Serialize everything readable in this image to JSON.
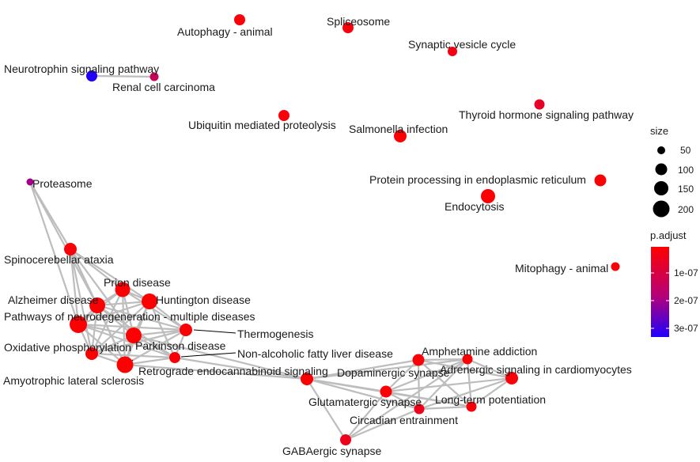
{
  "colors": {
    "low_p": "#ff0000",
    "mid_p": "#8a00d4",
    "high_p": "#1e00ff",
    "edge": "#bdbdbd",
    "leader": "#000000"
  },
  "legend_size": {
    "title": "size",
    "items": [
      "50",
      "100",
      "150",
      "200"
    ]
  },
  "legend_color": {
    "title": "p.adjust",
    "ticks": [
      "1e-07",
      "2e-07",
      "3e-07"
    ]
  },
  "nodes": [
    {
      "id": "autophagy",
      "label": "Autophagy - animal",
      "p": 0.03
    },
    {
      "id": "spliceosome",
      "label": "Spliceosome",
      "p": 0.05
    },
    {
      "id": "synvesicle",
      "label": "Synaptic vesicle cycle",
      "p": 0.08
    },
    {
      "id": "neurotrophin",
      "label": "Neurotrophin signaling pathway",
      "p": 0.99
    },
    {
      "id": "renal",
      "label": "Renal cell carcinoma",
      "p": 0.4
    },
    {
      "id": "thyroid",
      "label": "Thyroid hormone signaling pathway",
      "p": 0.18
    },
    {
      "id": "ubiquitin",
      "label": "Ubiquitin mediated proteolysis",
      "p": 0.04
    },
    {
      "id": "salmonella",
      "label": "Salmonella infection",
      "p": 0.02
    },
    {
      "id": "proteasome",
      "label": "Proteasome",
      "p": 0.6
    },
    {
      "id": "protproc",
      "label": "Protein processing in endoplasmic reticulum",
      "p": 0.02
    },
    {
      "id": "endocytosis",
      "label": "Endocytosis",
      "p": 0.01
    },
    {
      "id": "mitophagy",
      "label": "Mitophagy - animal",
      "p": 0.03
    },
    {
      "id": "sca",
      "label": "Spinocerebellar ataxia",
      "p": 0.03
    },
    {
      "id": "prion",
      "label": "Prion disease",
      "p": 0.01
    },
    {
      "id": "alzheimer",
      "label": "Alzheimer disease",
      "p": 0.01
    },
    {
      "id": "huntington",
      "label": "Huntington disease",
      "p": 0.01
    },
    {
      "id": "pathways",
      "label": "Pathways of neurodegeneration - multiple diseases",
      "p": 0.01
    },
    {
      "id": "thermogenesis",
      "label": "Thermogenesis",
      "p": 0.02
    },
    {
      "id": "parkinson",
      "label": "Parkinson disease",
      "p": 0.01
    },
    {
      "id": "oxphos",
      "label": "Oxidative phosphorylation",
      "p": 0.02
    },
    {
      "id": "nafld",
      "label": "Non-alcoholic fatty liver disease",
      "p": 0.03
    },
    {
      "id": "als",
      "label": "Amyotrophic lateral sclerosis",
      "p": 0.01
    },
    {
      "id": "retrograde",
      "label": "Retrograde endocannabinoid signaling",
      "p": 0.02
    },
    {
      "id": "amphetamine",
      "label": "Amphetamine addiction",
      "p": 0.03
    },
    {
      "id": "dopaminergic",
      "label": "Dopaminergic synapse",
      "p": 0.02
    },
    {
      "id": "adrenergic",
      "label": "Adrenergic signaling in cardiomyocytes",
      "p": 0.03
    },
    {
      "id": "glutamatergic",
      "label": "Glutamatergic synapse",
      "p": 0.02
    },
    {
      "id": "ltp",
      "label": "Long-term potentiation",
      "p": 0.05
    },
    {
      "id": "circadian",
      "label": "Circadian entrainment",
      "p": 0.12
    },
    {
      "id": "gabaergic",
      "label": "GABAergic synapse",
      "p": 0.12
    }
  ],
  "edges": [
    [
      "neurotrophin",
      "renal"
    ],
    [
      "proteasome",
      "sca"
    ],
    [
      "proteasome",
      "pathways"
    ],
    [
      "proteasome",
      "alzheimer"
    ],
    [
      "sca",
      "prion"
    ],
    [
      "sca",
      "alzheimer"
    ],
    [
      "sca",
      "huntington"
    ],
    [
      "sca",
      "pathways"
    ],
    [
      "sca",
      "parkinson"
    ],
    [
      "sca",
      "oxphos"
    ],
    [
      "sca",
      "als"
    ],
    [
      "prion",
      "alzheimer"
    ],
    [
      "prion",
      "huntington"
    ],
    [
      "prion",
      "pathways"
    ],
    [
      "prion",
      "parkinson"
    ],
    [
      "prion",
      "oxphos"
    ],
    [
      "prion",
      "als"
    ],
    [
      "prion",
      "thermogenesis"
    ],
    [
      "alzheimer",
      "huntington"
    ],
    [
      "alzheimer",
      "pathways"
    ],
    [
      "alzheimer",
      "parkinson"
    ],
    [
      "alzheimer",
      "oxphos"
    ],
    [
      "alzheimer",
      "als"
    ],
    [
      "alzheimer",
      "thermogenesis"
    ],
    [
      "alzheimer",
      "nafld"
    ],
    [
      "huntington",
      "pathways"
    ],
    [
      "huntington",
      "parkinson"
    ],
    [
      "huntington",
      "oxphos"
    ],
    [
      "huntington",
      "als"
    ],
    [
      "huntington",
      "thermogenesis"
    ],
    [
      "huntington",
      "nafld"
    ],
    [
      "pathways",
      "parkinson"
    ],
    [
      "pathways",
      "oxphos"
    ],
    [
      "pathways",
      "als"
    ],
    [
      "pathways",
      "thermogenesis"
    ],
    [
      "pathways",
      "nafld"
    ],
    [
      "parkinson",
      "oxphos"
    ],
    [
      "parkinson",
      "als"
    ],
    [
      "parkinson",
      "thermogenesis"
    ],
    [
      "parkinson",
      "nafld"
    ],
    [
      "parkinson",
      "retrograde"
    ],
    [
      "oxphos",
      "als"
    ],
    [
      "oxphos",
      "thermogenesis"
    ],
    [
      "oxphos",
      "nafld"
    ],
    [
      "als",
      "thermogenesis"
    ],
    [
      "als",
      "nafld"
    ],
    [
      "als",
      "retrograde"
    ],
    [
      "thermogenesis",
      "nafld"
    ],
    [
      "nafld",
      "retrograde"
    ],
    [
      "retrograde",
      "amphetamine"
    ],
    [
      "retrograde",
      "dopaminergic"
    ],
    [
      "retrograde",
      "glutamatergic"
    ],
    [
      "retrograde",
      "circadian"
    ],
    [
      "retrograde",
      "gabaergic"
    ],
    [
      "retrograde",
      "ltp"
    ],
    [
      "amphetamine",
      "dopaminergic"
    ],
    [
      "amphetamine",
      "adrenergic"
    ],
    [
      "amphetamine",
      "glutamatergic"
    ],
    [
      "amphetamine",
      "circadian"
    ],
    [
      "amphetamine",
      "ltp"
    ],
    [
      "dopaminergic",
      "adrenergic"
    ],
    [
      "dopaminergic",
      "glutamatergic"
    ],
    [
      "dopaminergic",
      "circadian"
    ],
    [
      "dopaminergic",
      "ltp"
    ],
    [
      "dopaminergic",
      "gabaergic"
    ],
    [
      "adrenergic",
      "glutamatergic"
    ],
    [
      "adrenergic",
      "circadian"
    ],
    [
      "adrenergic",
      "ltp"
    ],
    [
      "glutamatergic",
      "circadian"
    ],
    [
      "glutamatergic",
      "ltp"
    ],
    [
      "glutamatergic",
      "gabaergic"
    ],
    [
      "circadian",
      "ltp"
    ],
    [
      "circadian",
      "gabaergic"
    ]
  ]
}
